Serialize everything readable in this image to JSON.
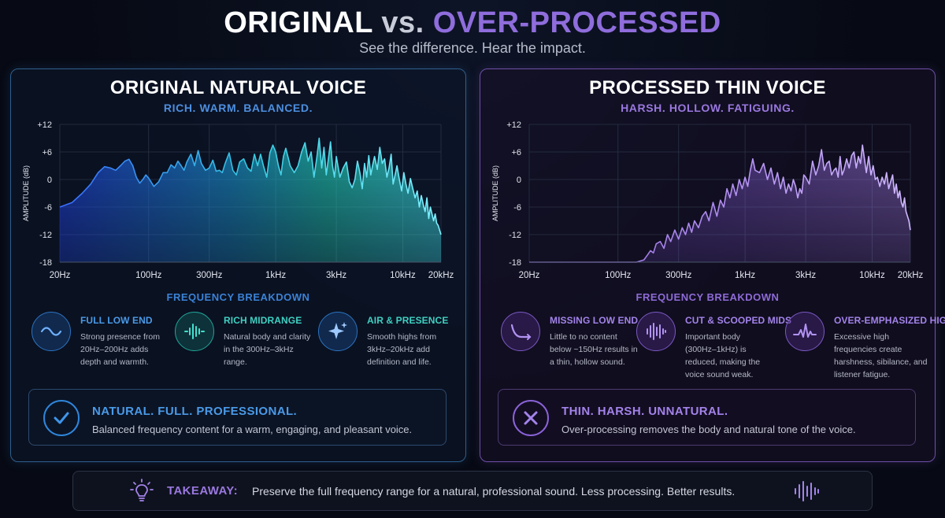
{
  "header": {
    "title_left": "ORIGINAL",
    "title_vs": "vs.",
    "title_right": "OVER-PROCESSED",
    "subtitle": "See the difference. Hear the impact."
  },
  "panels": [
    {
      "title": "ORIGINAL NATURAL VOICE",
      "tagline": "RICH. WARM. BALANCED.",
      "breakdown_title": "FREQUENCY BREAKDOWN",
      "features": [
        {
          "title": "FULL LOW END",
          "desc": "Strong presence from 20Hz–200Hz adds depth and warmth.",
          "icon": "wave-icon"
        },
        {
          "title": "RICH MIDRANGE",
          "desc": "Natural body and clarity in the 300Hz–3kHz range.",
          "icon": "waveform-icon"
        },
        {
          "title": "AIR & PRESENCE",
          "desc": "Smooth highs from 3kHz–20kHz add definition and life.",
          "icon": "sparkle-icon"
        }
      ],
      "verdict": {
        "title": "NATURAL. FULL. PROFESSIONAL.",
        "desc": "Balanced frequency content for a warm, engaging, and pleasant voice.",
        "icon": "check-icon"
      }
    },
    {
      "title": "PROCESSED THIN VOICE",
      "tagline": "HARSH. HOLLOW. FATIGUING.",
      "breakdown_title": "FREQUENCY BREAKDOWN",
      "features": [
        {
          "title": "MISSING LOW END",
          "desc": "Little to no content below ~150Hz results in a thin, hollow sound.",
          "icon": "rolloff-curve-icon"
        },
        {
          "title": "CUT & SCOOPED MIDS",
          "desc": "Important body (300Hz–1kHz) is reduced, making the voice sound weak.",
          "icon": "waveform-icon"
        },
        {
          "title": "OVER-EMPHASIZED HIGHS",
          "desc": "Excessive high frequencies create harshness, sibilance, and listener fatigue.",
          "icon": "spike-wave-icon"
        }
      ],
      "verdict": {
        "title": "THIN. HARSH. UNNATURAL.",
        "desc": "Over-processing removes the body and natural tone of the voice.",
        "icon": "x-icon"
      }
    }
  ],
  "takeaway": {
    "label": "TAKEAWAY:",
    "text": "Preserve the full frequency range for a natural, professional sound. Less processing. Better results.",
    "icon": "lightbulb-icon",
    "end_icon": "waveform-icon"
  },
  "colors": {
    "original_accent": "#3b82d6",
    "original_teal": "#2fd3c4",
    "processed_accent": "#8e6bd6",
    "background": "#070a14"
  },
  "chart_data": [
    {
      "type": "area",
      "title": "ORIGINAL NATURAL VOICE",
      "xlabel": "",
      "ylabel": "AMPLITUDE (dB)",
      "xscale": "log",
      "xlim": [
        20,
        20000
      ],
      "ylim": [
        -18,
        12
      ],
      "x_ticks": [
        20,
        100,
        300,
        1000,
        3000,
        10000,
        20000
      ],
      "x_tick_labels": [
        "20Hz",
        "100Hz",
        "300Hz",
        "1kHz",
        "3kHz",
        "10kHz",
        "20kHz"
      ],
      "y_ticks": [
        12,
        6,
        0,
        -6,
        -12,
        -18
      ],
      "y_tick_labels": [
        "+12",
        "+6",
        "0",
        "-6",
        "-12",
        "-18"
      ],
      "grid": true,
      "x": [
        20,
        25,
        30,
        35,
        40,
        45,
        50,
        55,
        60,
        65,
        70,
        75,
        80,
        85,
        90,
        95,
        100,
        110,
        120,
        130,
        140,
        150,
        160,
        170,
        180,
        190,
        200,
        215,
        230,
        245,
        260,
        280,
        300,
        320,
        340,
        360,
        380,
        400,
        430,
        460,
        490,
        520,
        560,
        600,
        640,
        680,
        720,
        760,
        800,
        850,
        900,
        950,
        1000,
        1050,
        1100,
        1150,
        1200,
        1300,
        1400,
        1500,
        1600,
        1700,
        1800,
        1900,
        2000,
        2100,
        2200,
        2300,
        2400,
        2500,
        2600,
        2700,
        2800,
        2900,
        3000,
        3200,
        3400,
        3600,
        3800,
        4000,
        4200,
        4400,
        4600,
        4800,
        5000,
        5200,
        5400,
        5600,
        5800,
        6000,
        6300,
        6600,
        6900,
        7200,
        7500,
        7800,
        8100,
        8400,
        8700,
        9000,
        9400,
        9800,
        10200,
        10600,
        11000,
        11500,
        12000,
        12500,
        13000,
        13500,
        14000,
        14500,
        15000,
        15500,
        16000,
        16500,
        17000,
        17500,
        18000,
        18500,
        19000,
        19500,
        20000
      ],
      "y": [
        -6,
        -5,
        -3,
        -1,
        1.5,
        2.8,
        2.5,
        2,
        3,
        4,
        4.4,
        3,
        0.5,
        -0.8,
        0,
        1,
        0.3,
        -1.5,
        -0.5,
        1.5,
        1.5,
        3.2,
        2.5,
        4,
        3,
        2,
        3.8,
        5.5,
        3,
        6.3,
        3.5,
        2,
        2.5,
        4.2,
        1.8,
        2,
        1.5,
        3.5,
        5.8,
        2,
        1,
        3.8,
        4.5,
        2.5,
        1.8,
        5.5,
        3,
        5.5,
        3,
        0.5,
        5.8,
        7.5,
        6,
        3,
        1,
        5,
        6.8,
        3,
        1.5,
        3,
        6,
        8,
        4,
        6,
        0.5,
        4.5,
        9,
        2.5,
        7,
        1,
        4.5,
        8.2,
        3,
        0.5,
        5,
        0.5,
        2.5,
        3.8,
        -0.5,
        -1.8,
        0,
        4,
        1.5,
        -2,
        3.5,
        0.5,
        5.2,
        1,
        3.2,
        5,
        2.2,
        7,
        3.5,
        4.5,
        0.5,
        2.5,
        5.5,
        -1,
        1,
        3,
        0,
        -2.5,
        1.5,
        -1,
        -3,
        0.2,
        -2,
        -4,
        -2.5,
        -6,
        -3.5,
        -5.5,
        -7,
        -4,
        -8.5,
        -6,
        -7.5,
        -9,
        -7.5,
        -9.5,
        -10,
        -11,
        -12
      ]
    },
    {
      "type": "area",
      "title": "PROCESSED THIN VOICE",
      "xlabel": "",
      "ylabel": "AMPLITUDE (dB)",
      "xscale": "log",
      "xlim": [
        20,
        20000
      ],
      "ylim": [
        -18,
        12
      ],
      "x_ticks": [
        20,
        100,
        300,
        1000,
        3000,
        10000,
        20000
      ],
      "x_tick_labels": [
        "20Hz",
        "100Hz",
        "300Hz",
        "1kHz",
        "3kHz",
        "10kHz",
        "20kHz"
      ],
      "y_ticks": [
        12,
        6,
        0,
        -6,
        -12,
        -18
      ],
      "y_tick_labels": [
        "+12",
        "+6",
        "0",
        "-6",
        "-12",
        "-18"
      ],
      "grid": true,
      "x": [
        20,
        50,
        100,
        140,
        160,
        170,
        180,
        190,
        200,
        215,
        230,
        245,
        260,
        280,
        300,
        320,
        340,
        360,
        380,
        400,
        430,
        460,
        490,
        520,
        560,
        600,
        640,
        680,
        720,
        760,
        800,
        850,
        900,
        950,
        1000,
        1050,
        1100,
        1150,
        1200,
        1300,
        1400,
        1500,
        1600,
        1700,
        1800,
        1900,
        2000,
        2100,
        2200,
        2300,
        2400,
        2500,
        2600,
        2700,
        2800,
        2900,
        3000,
        3200,
        3400,
        3600,
        3800,
        4000,
        4200,
        4400,
        4600,
        4800,
        5000,
        5200,
        5400,
        5600,
        5800,
        6000,
        6300,
        6600,
        6900,
        7200,
        7500,
        7800,
        8100,
        8400,
        8700,
        9000,
        9400,
        9800,
        10200,
        10600,
        11000,
        11500,
        12000,
        12500,
        13000,
        13500,
        14000,
        14500,
        15000,
        15500,
        16000,
        16500,
        17000,
        17500,
        18000,
        18500,
        19000,
        19500,
        20000
      ],
      "y": [
        -18,
        -18,
        -18,
        -18,
        -17.5,
        -16.5,
        -15.5,
        -16,
        -14,
        -13.5,
        -15,
        -12,
        -13.5,
        -11,
        -13,
        -10.5,
        -12,
        -9.5,
        -11.5,
        -9,
        -10.5,
        -8,
        -7,
        -9,
        -5,
        -8,
        -4.5,
        -6,
        -2,
        -4,
        -1,
        -3.5,
        0,
        -2,
        0.5,
        -1.5,
        2,
        4.5,
        2,
        1.5,
        3.5,
        0,
        2.5,
        -1,
        1.5,
        -2,
        0.5,
        -3,
        -1,
        -2.5,
        0,
        -1.5,
        -4,
        -2,
        -3,
        1,
        0.5,
        -1,
        4,
        1,
        3,
        6.5,
        2,
        3.5,
        4,
        1,
        2,
        2.5,
        0.5,
        5,
        1,
        2,
        4.5,
        2.5,
        5.2,
        6,
        2.5,
        5,
        3.5,
        7.5,
        4.5,
        1.5,
        5,
        1,
        3,
        0,
        0.5,
        -1.5,
        0.5,
        -1,
        1.5,
        -2,
        -0.5,
        1,
        -3,
        -1,
        -4,
        -2.5,
        -5,
        -6,
        -4,
        -7,
        -8,
        -9,
        -11
      ]
    }
  ]
}
